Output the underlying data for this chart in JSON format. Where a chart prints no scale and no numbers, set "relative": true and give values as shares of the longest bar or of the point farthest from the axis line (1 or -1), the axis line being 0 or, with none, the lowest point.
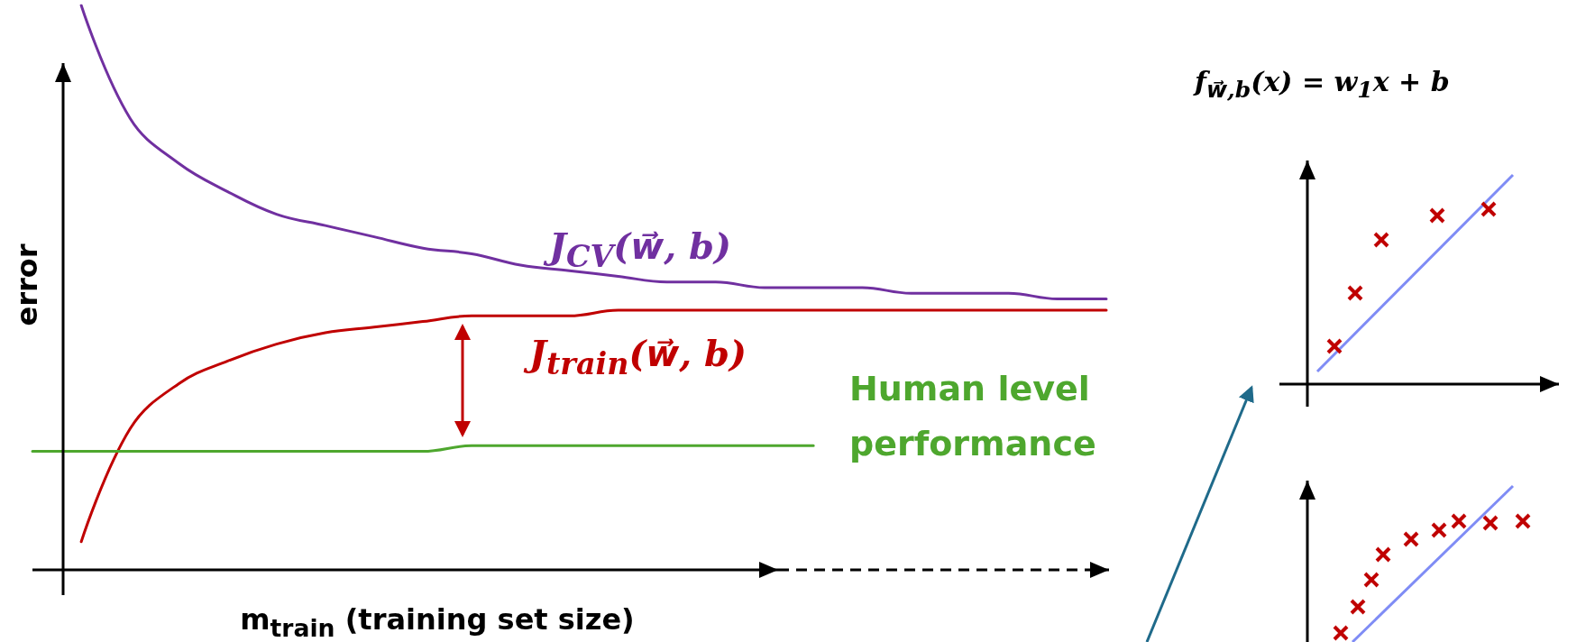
{
  "chart_data": {
    "type": "line",
    "relative": true,
    "xlabel": "m$_{train}$ (training set size)",
    "ylabel": "error",
    "marker": "none",
    "line_style": "solid",
    "annotations": [
      "f$_{w⃗,b}$(x) = w$_{1}$x + b"
    ],
    "categories": [
      null,
      null,
      null,
      null,
      null,
      null,
      null,
      null,
      null,
      null,
      null,
      null,
      null,
      null,
      null,
      null,
      null,
      null,
      null,
      null,
      null,
      null,
      null
    ],
    "series": [
      {
        "name": "J$_{CV}$(w⃗, b)",
        "color": "#7030a0",
        "values": [
          null,
          1.0,
          0.8,
          0.72,
          0.67,
          0.63,
          0.61,
          0.59,
          0.57,
          0.56,
          0.54,
          0.53,
          0.52,
          0.51,
          0.51,
          0.5,
          0.5,
          0.5,
          0.49,
          0.49,
          0.49,
          0.48,
          0.48
        ]
      },
      {
        "name": "J$_{train}$(w⃗, b)",
        "color": "#c00000",
        "values": [
          null,
          0.05,
          0.25,
          0.33,
          0.37,
          0.4,
          0.42,
          0.43,
          0.44,
          0.45,
          0.45,
          0.45,
          0.46,
          0.46,
          0.46,
          0.46,
          0.46,
          0.46,
          0.46,
          0.46,
          0.46,
          0.46,
          0.46
        ]
      },
      {
        "name": "Human level performance",
        "color": "#4ea72e",
        "values": [
          0.21,
          0.21,
          0.21,
          0.21,
          0.21,
          0.21,
          0.21,
          0.21,
          0.21,
          0.22,
          0.22,
          0.22,
          0.22,
          0.22,
          0.22,
          0.22,
          0.22,
          null,
          null,
          null,
          null,
          null,
          null
        ]
      }
    ]
  }
}
